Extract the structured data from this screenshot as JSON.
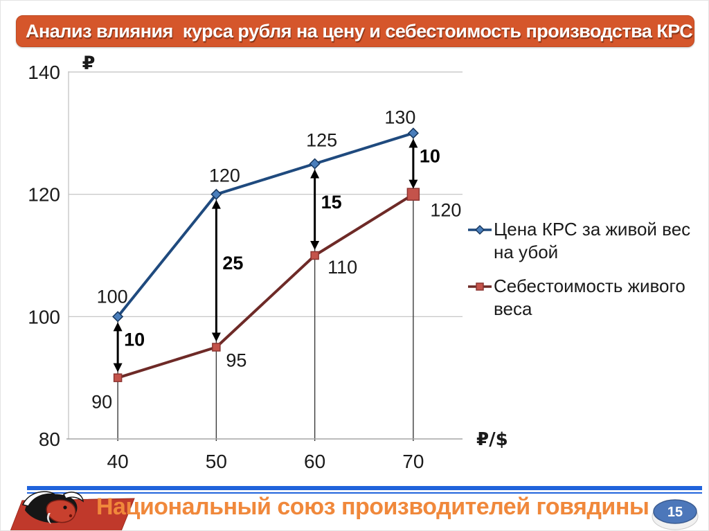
{
  "slide_title": {
    "text": "Анализ влияния  курса рубля на цену и себестоимость производства КРС",
    "bg_color": "#D5562B",
    "text_color": "#FFFFFF"
  },
  "chart_data": {
    "type": "line",
    "x": [
      40,
      50,
      60,
      70
    ],
    "xlabel": "₽/$",
    "ylabel": "₽",
    "ylim": [
      80,
      140
    ],
    "yticks": [
      80,
      100,
      120,
      140
    ],
    "grid": "horizontal gridlines at yticks, vertical drop lines from price points to x-axis",
    "legend_position": "right",
    "series": [
      {
        "name": "Цена КРС за живой вес на убой",
        "values": [
          100,
          120,
          125,
          130
        ],
        "color": "#1F4A7E",
        "marker": "diamond",
        "marker_fill": "#4A7EBB",
        "marker_stroke": "#17375E",
        "point_labels": [
          {
            "text": "100",
            "dx": -8,
            "dy": -29
          },
          {
            "text": "120",
            "dx": 12,
            "dy": -27
          },
          {
            "text": "125",
            "dx": 10,
            "dy": -34
          },
          {
            "text": "130",
            "dx": -19,
            "dy": -23
          }
        ]
      },
      {
        "name": "Себестоимость живого веса",
        "values": [
          90,
          95,
          110,
          120
        ],
        "color": "#6E2A27",
        "marker": "square",
        "marker_fill": "#C4534B",
        "marker_stroke": "#8C3431",
        "point_labels": [
          {
            "text": "90",
            "dx": -23,
            "dy": 35
          },
          {
            "text": "95",
            "dx": 29,
            "dy": 19
          },
          {
            "text": "110",
            "dx": 40,
            "dy": 17
          },
          {
            "text": "120",
            "dx": 47,
            "dy": 23
          }
        ]
      }
    ],
    "annotations": [
      {
        "x": 40,
        "from": 100,
        "to": 90,
        "label": "10"
      },
      {
        "x": 50,
        "from": 120,
        "to": 95,
        "label": "25"
      },
      {
        "x": 60,
        "from": 125,
        "to": 110,
        "label": "15"
      },
      {
        "x": 70,
        "from": 130,
        "to": 120,
        "label": "10"
      }
    ]
  },
  "footer": {
    "org_name": "Национальный союз производителей говядины",
    "page_number": "15",
    "logo": "bull-head-logo",
    "accent_line_color": "#2063DB",
    "org_text_color": "#F0883B",
    "badge_color": "#4C77BA"
  }
}
